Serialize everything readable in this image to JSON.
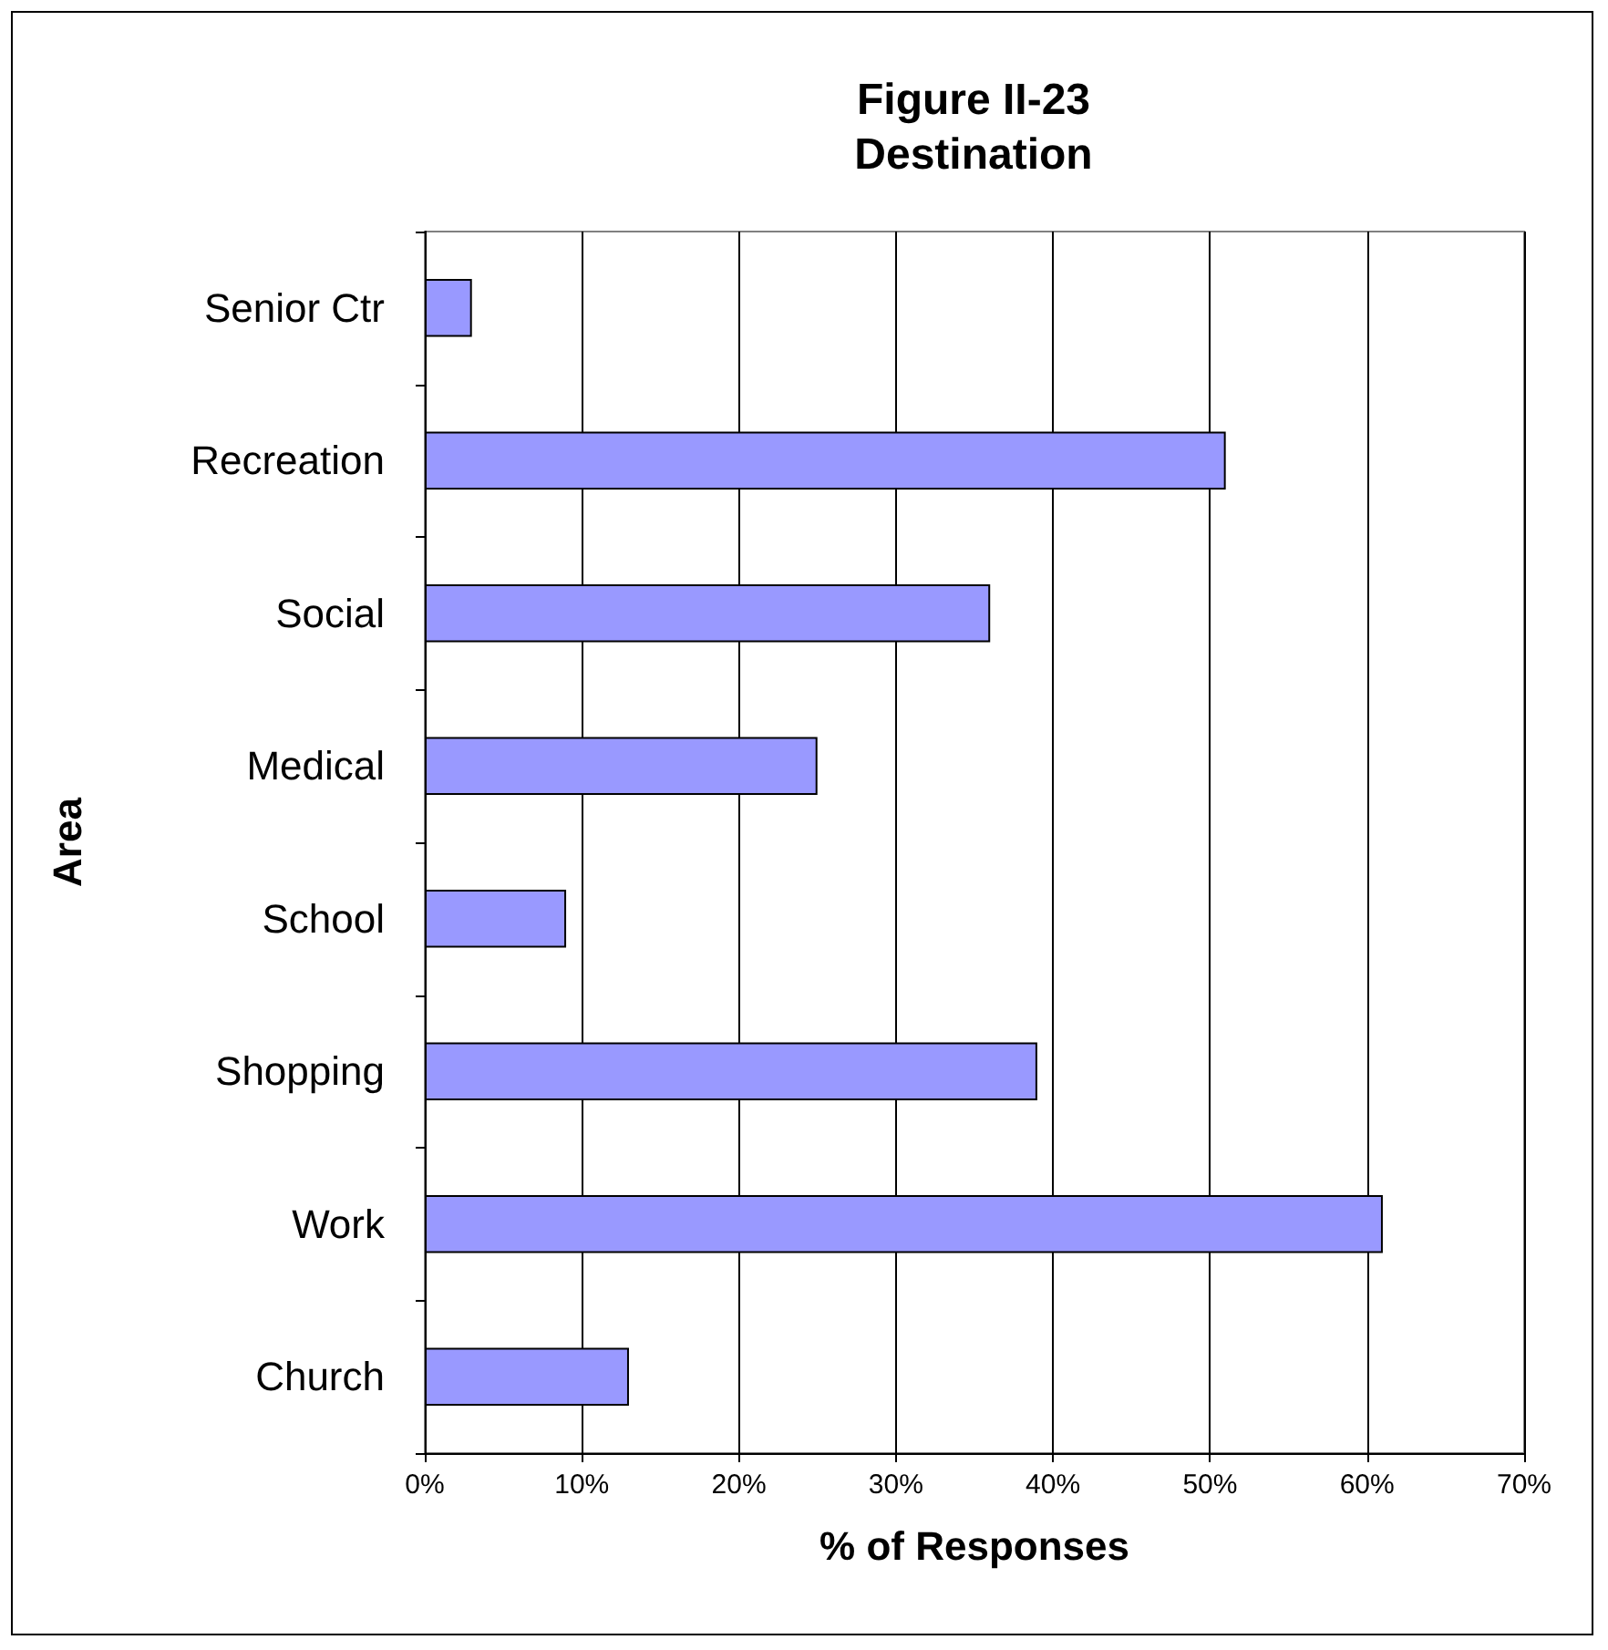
{
  "chart_data": {
    "type": "bar",
    "orientation": "horizontal",
    "title": "Figure II-23\nDestination",
    "xlabel": "% of Responses",
    "ylabel": "Area",
    "categories": [
      "Senior Ctr",
      "Recreation",
      "Social",
      "Medical",
      "School",
      "Shopping",
      "Work",
      "Church"
    ],
    "values": [
      3,
      51,
      36,
      25,
      9,
      39,
      61,
      13
    ],
    "color": "#9999ff",
    "xlim": [
      0,
      70
    ],
    "xticks": [
      {
        "value": 0,
        "label": "0%"
      },
      {
        "value": 10,
        "label": "10%"
      },
      {
        "value": 20,
        "label": "20%"
      },
      {
        "value": 30,
        "label": "30%"
      },
      {
        "value": 40,
        "label": "40%"
      },
      {
        "value": 50,
        "label": "50%"
      },
      {
        "value": 60,
        "label": "60%"
      },
      {
        "value": 70,
        "label": "70%"
      }
    ],
    "grid": "x"
  }
}
